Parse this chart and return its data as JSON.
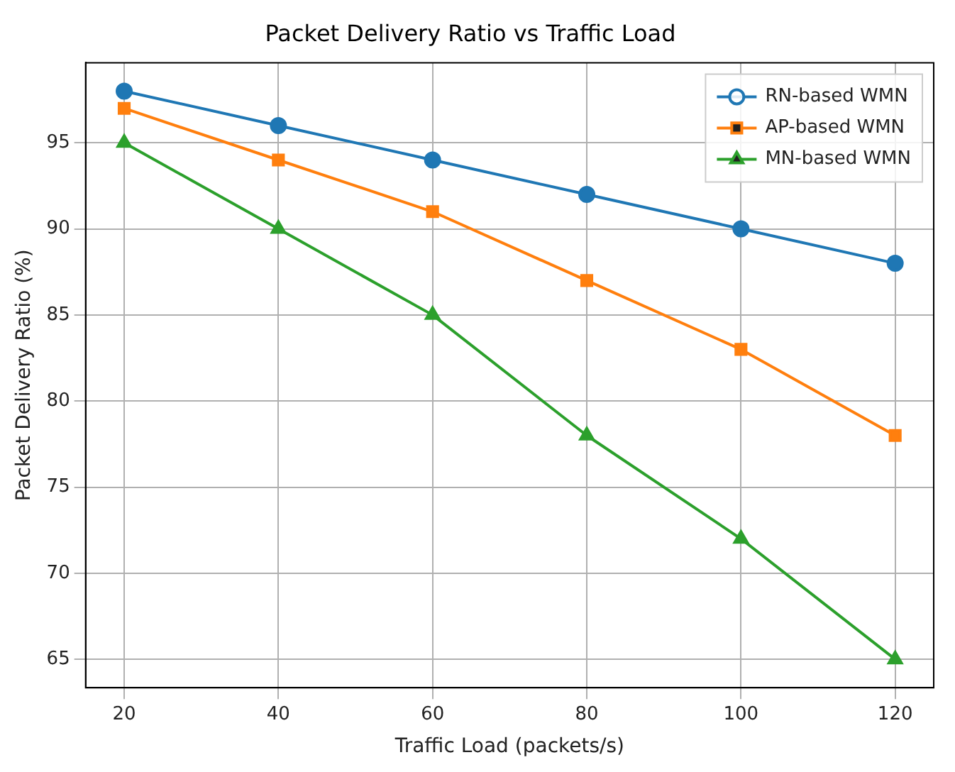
{
  "chart_data": {
    "type": "line",
    "title": "Packet Delivery Ratio vs Traffic Load",
    "xlabel": "Traffic Load (packets/s)",
    "ylabel": "Packet Delivery Ratio (%)",
    "x": [
      20,
      40,
      60,
      80,
      100,
      120
    ],
    "series": [
      {
        "name": "RN-based WMN",
        "color": "#1f77b4",
        "marker": "circle",
        "values": [
          98,
          96,
          94,
          92,
          90,
          88
        ]
      },
      {
        "name": "AP-based WMN",
        "color": "#ff7f0e",
        "marker": "square",
        "values": [
          97,
          94,
          91,
          87,
          83,
          78
        ]
      },
      {
        "name": "MN-based WMN",
        "color": "#2ca02c",
        "marker": "triangle",
        "values": [
          95,
          90,
          85,
          78,
          72,
          65
        ]
      }
    ],
    "xlim": [
      15,
      125
    ],
    "xticks": [
      20,
      40,
      60,
      80,
      100,
      120
    ],
    "ylim": [
      63.35,
      99.65
    ],
    "yticks": [
      65,
      70,
      75,
      80,
      85,
      90,
      95
    ],
    "grid": true,
    "legend": "top right",
    "line_style": "solid"
  }
}
